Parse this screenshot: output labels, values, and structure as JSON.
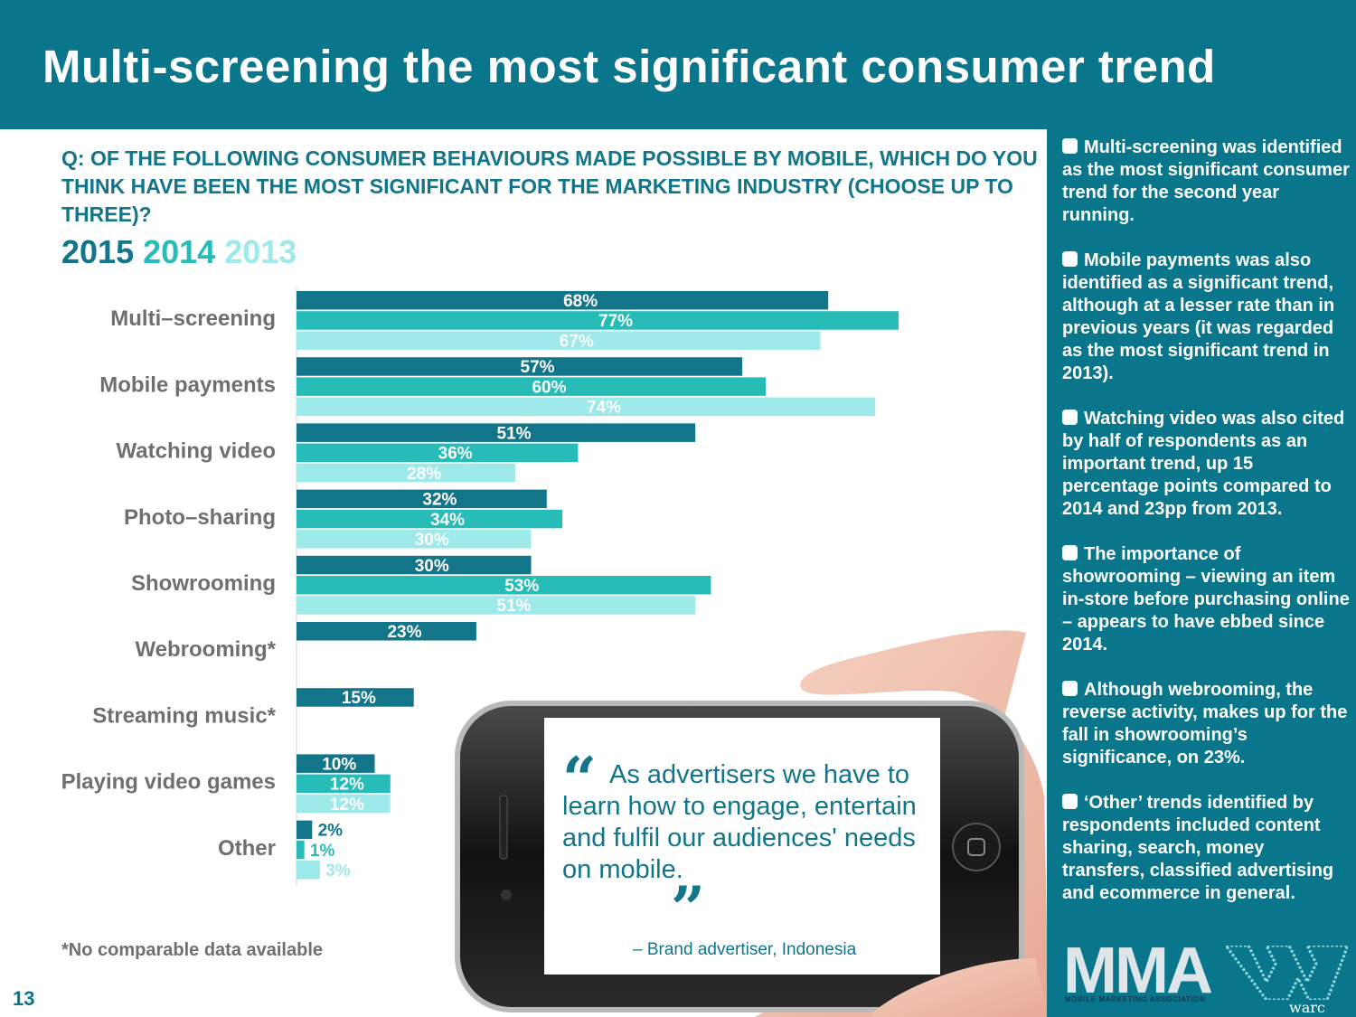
{
  "title": "Multi-screening the most significant consumer trend",
  "question": "Q: Of the following consumer behaviours made possible by mobile, which do you think have been the most significant for the marketing industry (choose up to three)?",
  "legend": [
    {
      "label": "2015",
      "color": "#12758a"
    },
    {
      "label": "2014",
      "color": "#27bcb8"
    },
    {
      "label": "2013",
      "color": "#9ee9ea"
    }
  ],
  "chart_data": {
    "type": "bar",
    "orientation": "horizontal",
    "title": "",
    "xlabel": "",
    "ylabel": "",
    "xlim": [
      0,
      100
    ],
    "categories": [
      "Multi–screening",
      "Mobile payments",
      "Watching video",
      "Photo–sharing",
      "Showrooming",
      "Webrooming*",
      "Streaming music*",
      "Playing video games",
      "Other"
    ],
    "series": [
      {
        "name": "2015",
        "color": "#12758a",
        "values": [
          68,
          57,
          51,
          32,
          30,
          23,
          15,
          10,
          2
        ]
      },
      {
        "name": "2014",
        "color": "#27bcb8",
        "values": [
          77,
          60,
          36,
          34,
          53,
          null,
          null,
          12,
          1
        ]
      },
      {
        "name": "2013",
        "color": "#9ee9ea",
        "values": [
          67,
          74,
          28,
          30,
          51,
          null,
          null,
          12,
          3
        ]
      }
    ],
    "legend_position": "top-left",
    "grid": false
  },
  "footnote": "*No comparable data available",
  "page_number": "13",
  "quote": {
    "open_mark": "“",
    "text": "As advertisers we have to learn how to engage, entertain and fulfil our audiences' needs on mobile.",
    "close_mark": "”",
    "attribution": "– Brand advertiser, Indonesia"
  },
  "side_points": [
    "Multi-screening was identified as the most significant consumer trend for the second year running.",
    "Mobile payments was also identified as a significant trend, although at a lesser rate than in previous years (it was regarded as the most significant trend in 2013).",
    "Watching video was also cited by half of respondents as an important trend, up 15 percentage points compared to 2014 and 23pp from 2013.",
    "The importance of showrooming – viewing an item in-store before purchasing online – appears to have ebbed since 2014.",
    "Although webrooming, the reverse activity, makes up for the fall in showrooming’s significance, on 23%.",
    "‘Other’ trends identified by respondents included content sharing, search, money transfers, classified advertising and ecommerce in general."
  ],
  "logos": {
    "mma": "MMA",
    "mma_sub": "MOBILE MARKETING ASSOCIATION",
    "warc": "warc"
  }
}
